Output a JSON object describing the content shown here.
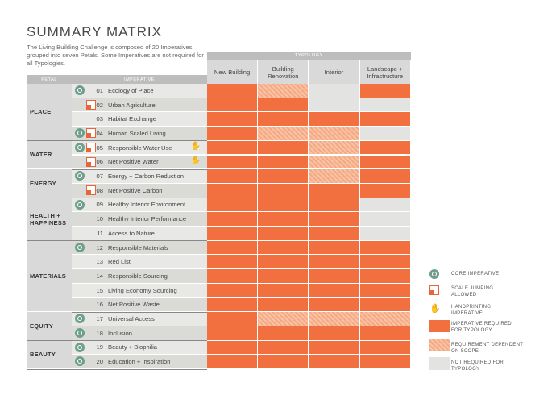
{
  "title": "SUMMARY MATRIX",
  "intro": "The Living Building Challenge is composed of 20 Imperatives grouped into seven Petals. Some Imperatives are not required for all Typologies.",
  "headers": {
    "typology": "TYPOLOGY",
    "petal": "PETAL",
    "imperative": "IMPERATIVE",
    "columns": [
      "New Building",
      "Building Renovation",
      "Interior",
      "Landscape + Infrastructure"
    ]
  },
  "petals": [
    {
      "name": "PLACE",
      "rows": [
        0,
        4
      ]
    },
    {
      "name": "WATER",
      "rows": [
        4,
        6
      ]
    },
    {
      "name": "ENERGY",
      "rows": [
        6,
        8
      ]
    },
    {
      "name": "HEALTH + HAPPINESS",
      "rows": [
        8,
        11
      ]
    },
    {
      "name": "MATERIALS",
      "rows": [
        11,
        16
      ]
    },
    {
      "name": "EQUITY",
      "rows": [
        16,
        18
      ]
    },
    {
      "name": "BEAUTY",
      "rows": [
        18,
        20
      ]
    }
  ],
  "imperatives": [
    {
      "num": "01",
      "name": "Ecology of Place",
      "core": true,
      "scale": false,
      "hand": false,
      "cells": [
        "R",
        "D",
        "N",
        "R"
      ]
    },
    {
      "num": "02",
      "name": "Urban Agriculture",
      "core": false,
      "scale": true,
      "hand": false,
      "cells": [
        "R",
        "R",
        "N",
        "N"
      ]
    },
    {
      "num": "03",
      "name": "Habitat Exchange",
      "core": false,
      "scale": false,
      "hand": false,
      "cells": [
        "R",
        "R",
        "R",
        "R"
      ]
    },
    {
      "num": "04",
      "name": "Human Scaled Living",
      "core": true,
      "scale": true,
      "hand": false,
      "cells": [
        "R",
        "D",
        "D",
        "N"
      ]
    },
    {
      "num": "05",
      "name": "Responsible Water Use",
      "core": true,
      "scale": true,
      "hand": true,
      "cells": [
        "R",
        "R",
        "D",
        "R"
      ]
    },
    {
      "num": "06",
      "name": "Net Positive Water",
      "core": false,
      "scale": true,
      "hand": true,
      "cells": [
        "R",
        "R",
        "D",
        "R"
      ]
    },
    {
      "num": "07",
      "name": "Energy + Carbon Reduction",
      "core": true,
      "scale": false,
      "hand": false,
      "cells": [
        "R",
        "R",
        "D",
        "R"
      ]
    },
    {
      "num": "08",
      "name": "Net Positive Carbon",
      "core": false,
      "scale": true,
      "hand": false,
      "cells": [
        "R",
        "R",
        "R",
        "R"
      ]
    },
    {
      "num": "09",
      "name": "Healthy Interior Environment",
      "core": true,
      "scale": false,
      "hand": false,
      "cells": [
        "R",
        "R",
        "R",
        "N"
      ]
    },
    {
      "num": "10",
      "name": "Healthy Interior Performance",
      "core": false,
      "scale": false,
      "hand": false,
      "cells": [
        "R",
        "R",
        "R",
        "N"
      ]
    },
    {
      "num": "11",
      "name": "Access to Nature",
      "core": false,
      "scale": false,
      "hand": false,
      "cells": [
        "R",
        "R",
        "R",
        "N"
      ]
    },
    {
      "num": "12",
      "name": "Responsible Materials",
      "core": true,
      "scale": false,
      "hand": false,
      "cells": [
        "R",
        "R",
        "R",
        "R"
      ]
    },
    {
      "num": "13",
      "name": "Red List",
      "core": false,
      "scale": false,
      "hand": false,
      "cells": [
        "R",
        "R",
        "R",
        "R"
      ]
    },
    {
      "num": "14",
      "name": "Responsible Sourcing",
      "core": false,
      "scale": false,
      "hand": false,
      "cells": [
        "R",
        "R",
        "R",
        "R"
      ]
    },
    {
      "num": "15",
      "name": "Living Economy Sourcing",
      "core": false,
      "scale": false,
      "hand": false,
      "cells": [
        "R",
        "R",
        "R",
        "R"
      ]
    },
    {
      "num": "16",
      "name": "Net Positive Waste",
      "core": false,
      "scale": false,
      "hand": false,
      "cells": [
        "R",
        "R",
        "R",
        "R"
      ]
    },
    {
      "num": "17",
      "name": "Universal Access",
      "core": true,
      "scale": false,
      "hand": false,
      "cells": [
        "R",
        "D",
        "D",
        "D"
      ]
    },
    {
      "num": "18",
      "name": "Inclusion",
      "core": true,
      "scale": false,
      "hand": false,
      "cells": [
        "R",
        "R",
        "R",
        "R"
      ]
    },
    {
      "num": "19",
      "name": "Beauty + Biophilia",
      "core": true,
      "scale": false,
      "hand": false,
      "cells": [
        "R",
        "R",
        "R",
        "R"
      ]
    },
    {
      "num": "20",
      "name": "Education + Inspiration",
      "core": true,
      "scale": false,
      "hand": false,
      "cells": [
        "R",
        "R",
        "R",
        "R"
      ]
    }
  ],
  "legend": {
    "core": "CORE IMPERATIVE",
    "scale": "SCALE JUMPING ALLOWED",
    "hand": "HANDPRINTING IMPERATIVE",
    "req": "IMPERATIVE REQUIRED FOR TYPOLOGY",
    "dep": "REQUIREMENT DEPENDENT ON SCOPE",
    "nr": "NOT REQUIRED FOR TYPOLOGY"
  },
  "colors": {
    "required": "#f26f3f",
    "dependent": "#f7b592",
    "not_required": "#e3e3e1",
    "core": "#6f9f8c"
  }
}
